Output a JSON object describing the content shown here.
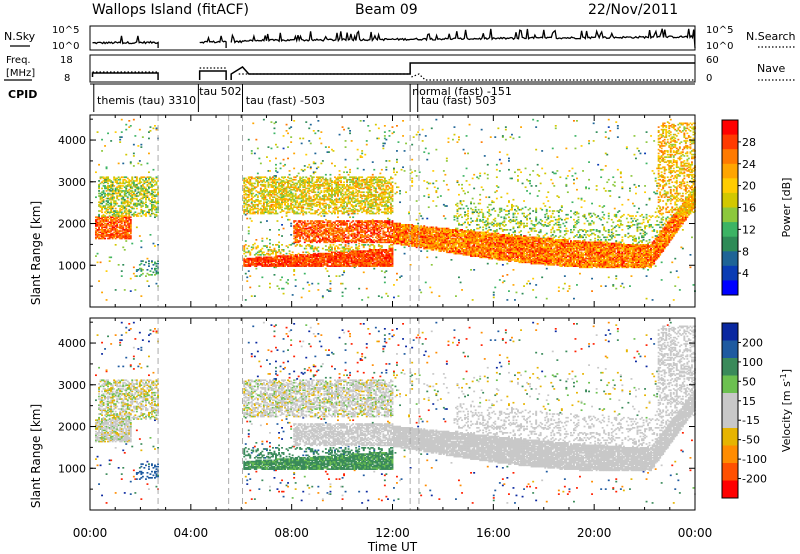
{
  "header": {
    "site": "Wallops Island (fitACF)",
    "beam": "Beam 09",
    "date": "22/Nov/2011"
  },
  "noise_panel": {
    "left_label": "N.Sky",
    "right_label": "N.Search",
    "left_ticks": [
      "10^5",
      "10^0"
    ],
    "right_ticks": [
      "10^5",
      "10^0"
    ]
  },
  "freq_panel": {
    "left_label_line1": "Freq.",
    "left_label_line2": "[MHz]",
    "right_label": "Nave",
    "left_ticks": [
      "18",
      "8"
    ],
    "right_ticks": [
      "60",
      "0"
    ]
  },
  "cpid": {
    "label": "CPID",
    "segments": [
      {
        "text": "themis (tau) 3310",
        "start_hour": 0.2
      },
      {
        "text": "tau 502",
        "start_hour": 4.25
      },
      {
        "text": "tau (fast) -503",
        "start_hour": 6.1
      },
      {
        "text": "normal (fast) -151",
        "start_hour": 12.7
      },
      {
        "text": "tau (fast) 503",
        "start_hour": 13.05
      }
    ]
  },
  "power_colorbar": {
    "label": "Power [dB]",
    "ticks": [
      "28",
      "24",
      "20",
      "16",
      "12",
      "8",
      "4"
    ],
    "colors": [
      "#ff0000",
      "#ff3a00",
      "#ff7a00",
      "#ffa500",
      "#ffcc00",
      "#d2c800",
      "#8cc83c",
      "#3cb464",
      "#2e8b57",
      "#1e6496",
      "#0a3cb4",
      "#0000ff"
    ]
  },
  "velocity_colorbar": {
    "label_main": "Velocity [m s",
    "label_sup": "-1",
    "label_end": "]",
    "ticks": [
      "200",
      "100",
      "50",
      "15",
      "-15",
      "-50",
      "-100",
      "-200"
    ],
    "colors": [
      "#0a28a0",
      "#1e5aa0",
      "#3a8a5a",
      "#6cc050",
      "#c8c8c8",
      "#c8c8c8",
      "#e6b400",
      "#ff8c00",
      "#ff5000",
      "#ff0000"
    ]
  },
  "chart_data": {
    "type": "heatmap",
    "xlabel": "Time UT",
    "ylabel": "Slant Range [km]",
    "x_ticks": [
      "00:00",
      "04:00",
      "08:00",
      "12:00",
      "16:00",
      "20:00",
      "00:00"
    ],
    "x_range_hours": [
      0,
      24
    ],
    "y_range_km": [
      0,
      4600
    ],
    "y_ticks": [
      1000,
      2000,
      3000,
      4000
    ],
    "grid": false,
    "data_gaps_hours": [
      [
        2.7,
        4.2
      ],
      [
        4.35,
        5.4
      ],
      [
        5.6,
        6.05
      ]
    ],
    "segment_boundaries_hours": [
      2.7,
      5.5,
      6.05,
      12.7,
      13.05
    ],
    "power_features": [
      {
        "name": "lower band",
        "t_start": 6.1,
        "t_end": 12.0,
        "range_km": [
          950,
          1150
        ],
        "power_db": 26
      },
      {
        "name": "descending band",
        "t_start": 12.0,
        "t_end": 24.0,
        "range_km_start": [
          1500,
          1800
        ],
        "range_km_mid": [
          900,
          1300
        ],
        "range_km_end": [
          2300,
          3000
        ],
        "power_db": 24
      },
      {
        "name": "early band",
        "t_start": 0.5,
        "t_end": 1.6,
        "range_km": [
          1700,
          2100
        ],
        "power_db": 26
      },
      {
        "name": "upper scatter",
        "t_start": 6.1,
        "t_end": 11.0,
        "range_km": [
          2300,
          3100
        ],
        "power_db": 16
      }
    ],
    "velocity_features": [
      {
        "name": "main echo band",
        "t_start": 12.0,
        "t_end": 24.0,
        "velocity_ms": [
          -15,
          15
        ]
      },
      {
        "name": "lower band east",
        "t_start": 6.1,
        "t_end": 12.0,
        "range_km": [
          950,
          1150
        ],
        "velocity_ms": 50
      }
    ]
  }
}
